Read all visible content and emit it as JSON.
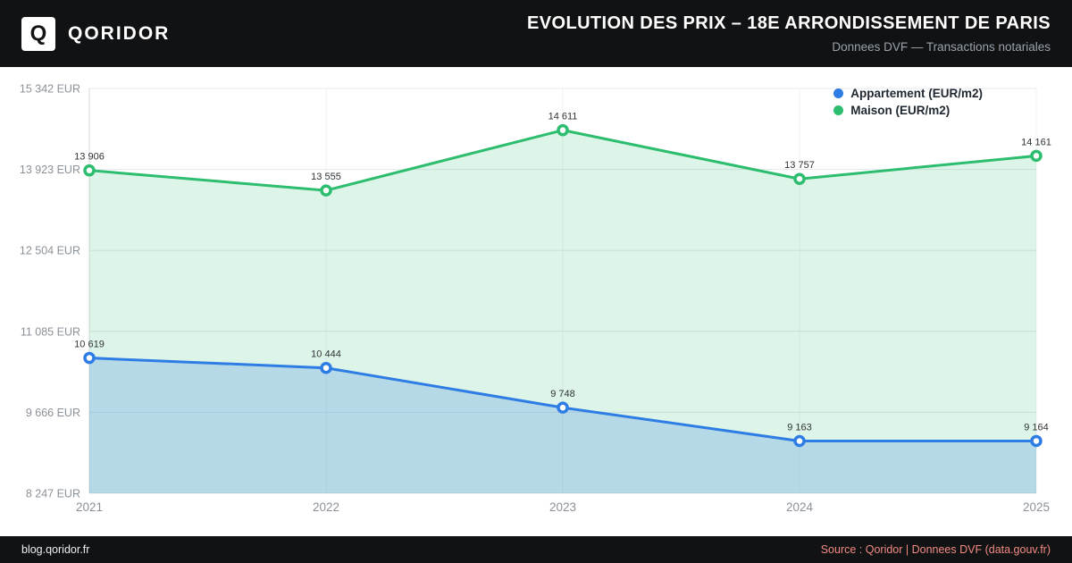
{
  "header": {
    "logo_letter": "Q",
    "brand": "QORIDOR",
    "title": "EVOLUTION DES PRIX – 18E ARRONDISSEMENT DE PARIS",
    "subtitle": "Donnees DVF — Transactions notariales"
  },
  "footer": {
    "left": "blog.qoridor.fr",
    "right": "Source : Qoridor | Donnees DVF (data.gouv.fr)"
  },
  "colors": {
    "header_bg": "#111214",
    "appartement": "#2e7de4",
    "maison": "#2dbd6e",
    "grid": "#e6e9ec",
    "axis_text": "#8b9198",
    "label_text": "#2f3337",
    "source_text": "#f28b82"
  },
  "chart_data": {
    "type": "line",
    "title": "Evolution des prix – 18e arrondissement de Paris",
    "categories": [
      "2021",
      "2022",
      "2023",
      "2024",
      "2025"
    ],
    "series": [
      {
        "name": "Appartement (EUR/m2)",
        "values": [
          10619,
          10444,
          9748,
          9163,
          9164
        ],
        "color": "#2e7de4",
        "fill_opacity": 0.22
      },
      {
        "name": "Maison (EUR/m2)",
        "values": [
          13906,
          13555,
          14611,
          13757,
          14161
        ],
        "color": "#2dbd6e",
        "fill_opacity": 0.16
      }
    ],
    "y_ticks": [
      8247,
      9666,
      11085,
      12504,
      13923,
      15342
    ],
    "y_tick_suffix": " EUR",
    "ylim": [
      8247,
      15342
    ],
    "grid": true,
    "area_fill": true,
    "legend_position": "top-right"
  }
}
